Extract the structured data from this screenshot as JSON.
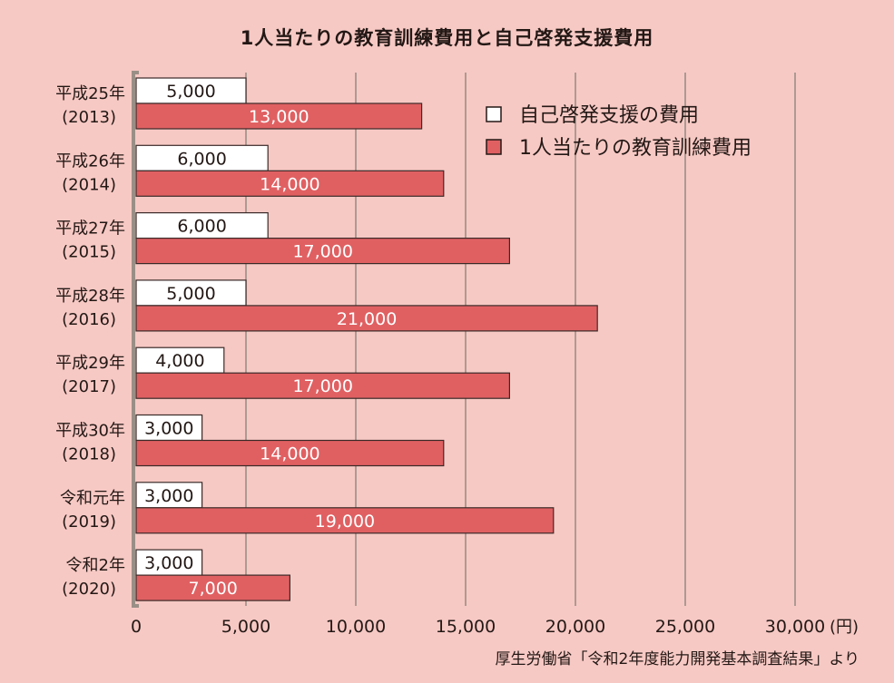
{
  "title": "1人当たりの教育訓練費用と自己啓発支援費用",
  "source": "厚生労働省「令和2年度能力開発基本調査結果」より",
  "chart_data": {
    "type": "bar",
    "orientation": "horizontal",
    "categories": [
      {
        "era": "平成25年",
        "year": "(2013)"
      },
      {
        "era": "平成26年",
        "year": "(2014)"
      },
      {
        "era": "平成27年",
        "year": "(2015)"
      },
      {
        "era": "平成28年",
        "year": "(2016)"
      },
      {
        "era": "平成29年",
        "year": "(2017)"
      },
      {
        "era": "平成30年",
        "year": "(2018)"
      },
      {
        "era": "令和元年",
        "year": "(2019)"
      },
      {
        "era": "令和2年",
        "year": "(2020)"
      }
    ],
    "series": [
      {
        "name": "自己啓発支援の費用",
        "color": "#ffffff",
        "label_color": "#231815",
        "values": [
          5000,
          6000,
          6000,
          5000,
          4000,
          3000,
          3000,
          3000
        ],
        "labels": [
          "5,000",
          "6,000",
          "6,000",
          "5,000",
          "4,000",
          "3,000",
          "3,000",
          "3,000"
        ]
      },
      {
        "name": "1人当たりの教育訓練費用",
        "color": "#e06062",
        "label_color": "#ffffff",
        "values": [
          13000,
          14000,
          17000,
          21000,
          17000,
          14000,
          19000,
          7000
        ],
        "labels": [
          "13,000",
          "14,000",
          "17,000",
          "21,000",
          "17,000",
          "14,000",
          "19,000",
          "7,000"
        ]
      }
    ],
    "xlim": [
      0,
      30000
    ],
    "xticks": [
      0,
      5000,
      10000,
      15000,
      20000,
      25000,
      30000
    ],
    "xtick_labels": [
      "0",
      "5,000",
      "10,000",
      "15,000",
      "20,000",
      "25,000",
      "30,000"
    ],
    "x_unit": "(円)",
    "gridlines": "vertical",
    "legend_position": "top-right",
    "grid_color": "#9a8f86",
    "axis_color": "#9a8f86"
  }
}
